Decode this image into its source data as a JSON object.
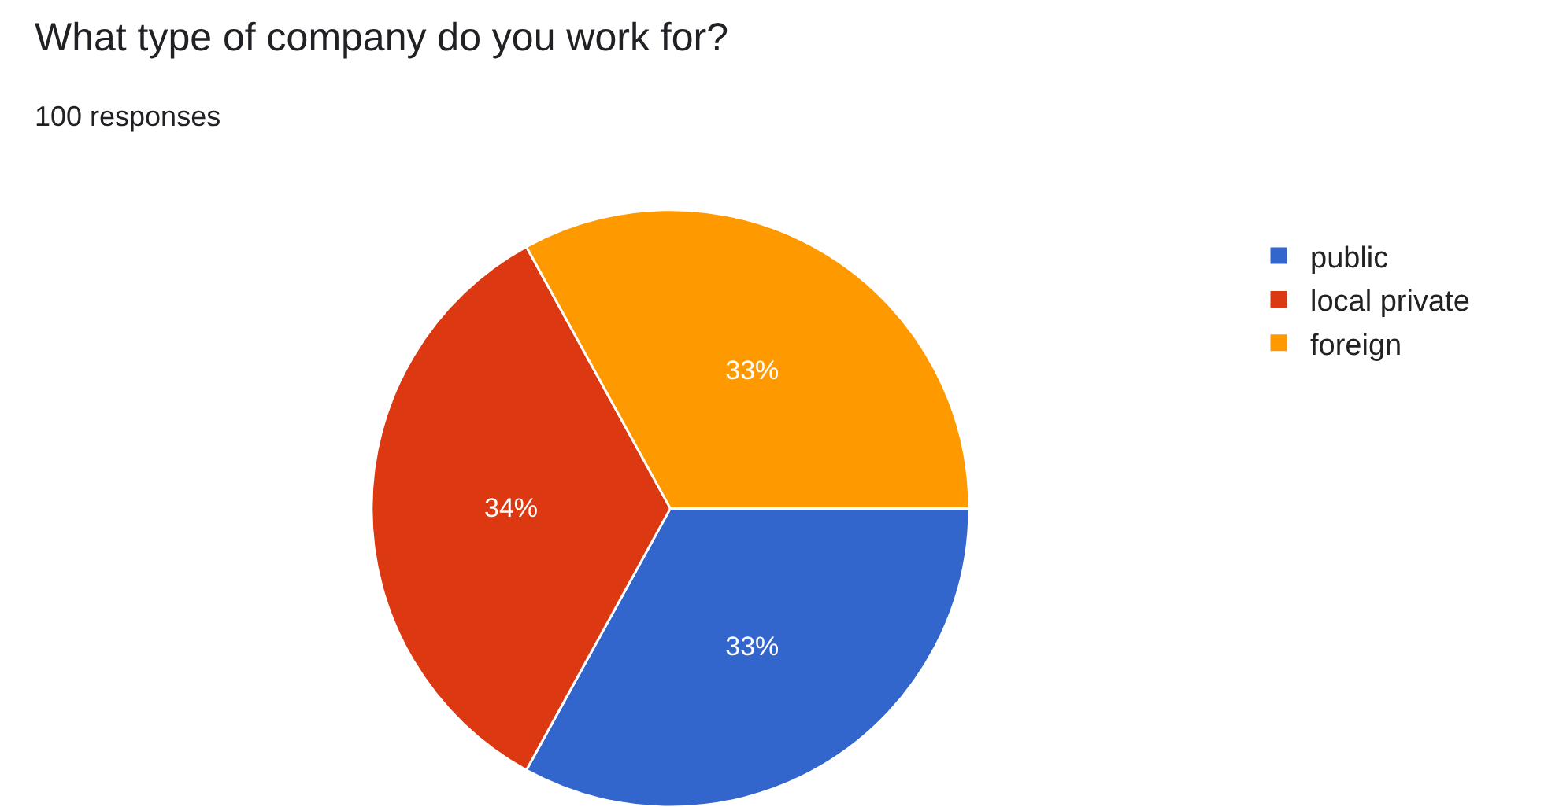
{
  "chart_data": {
    "type": "pie",
    "title": "What type of company do you work for?",
    "subtitle": "100 responses",
    "categories": [
      "public",
      "local private",
      "foreign"
    ],
    "values": [
      33,
      34,
      33
    ],
    "colors": [
      "#3366cc",
      "#dc3912",
      "#ff9900"
    ],
    "value_labels": [
      "33%",
      "34%",
      "33%"
    ],
    "legend": "top right"
  }
}
